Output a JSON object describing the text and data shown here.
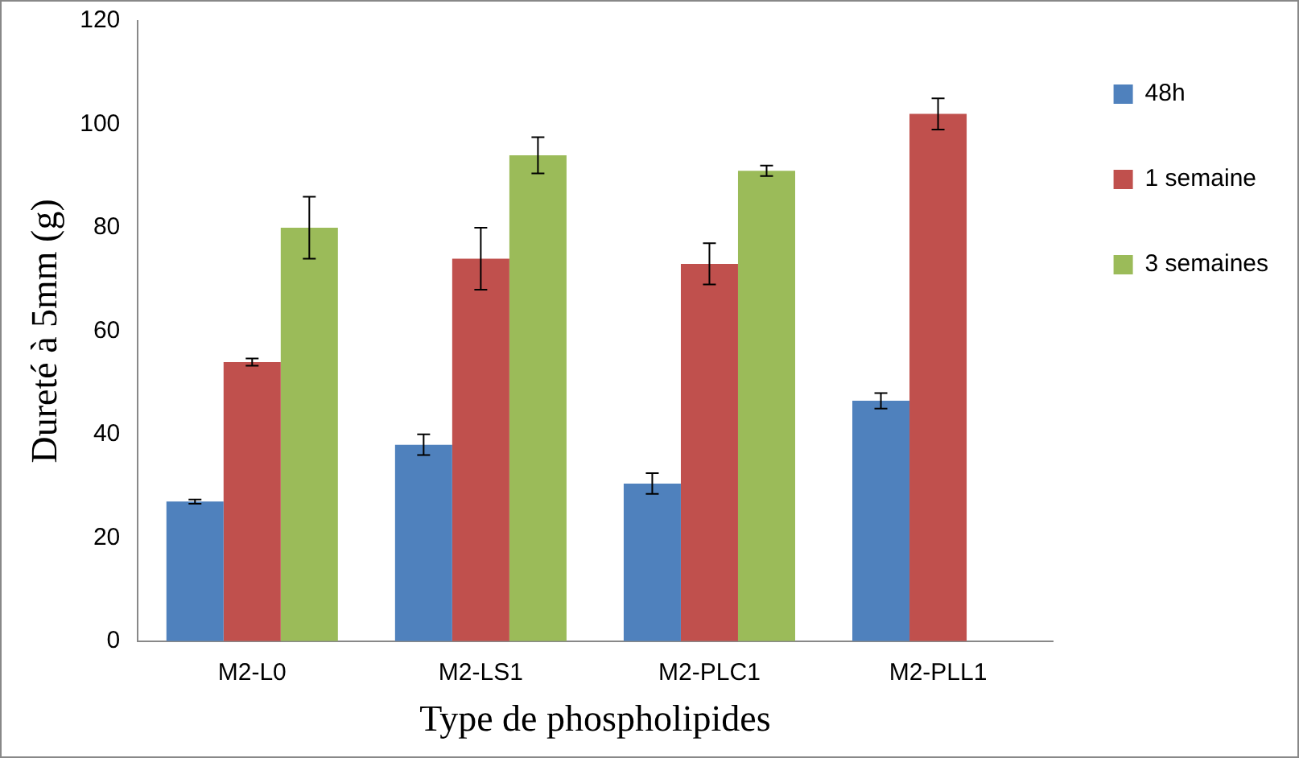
{
  "chart_data": {
    "type": "bar",
    "xlabel": "Type de phospholipides",
    "ylabel": "Dureté à 5mm (g)",
    "categories": [
      "M2-L0",
      "M2-LS1",
      "M2-PLC1",
      "M2-PLL1"
    ],
    "series": [
      {
        "name": "48h",
        "color": "#4f81bd",
        "values": [
          27,
          38,
          30.5,
          46.5
        ],
        "errors": [
          0.4,
          2,
          2,
          1.5
        ]
      },
      {
        "name": "1 semaine",
        "color": "#c0504d",
        "values": [
          54,
          74,
          73,
          102
        ],
        "errors": [
          0.7,
          6,
          4,
          3
        ]
      },
      {
        "name": "3 semaines",
        "color": "#9bbb59",
        "values": [
          80,
          94,
          91,
          null
        ],
        "errors": [
          6,
          3.5,
          1,
          null
        ]
      }
    ],
    "ylim": [
      0,
      120
    ],
    "yticks": [
      0,
      20,
      40,
      60,
      80,
      100,
      120
    ],
    "grid": false,
    "legend": "right"
  }
}
